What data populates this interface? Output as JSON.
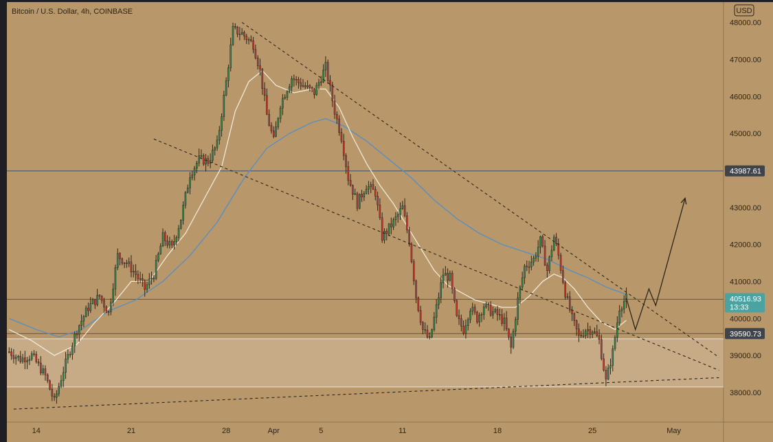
{
  "chart_data": {
    "type": "candlestick",
    "title": "Bitcoin / U.S. Dollar, 4h, COINBASE",
    "currency": "USD",
    "ylim": [
      37200,
      48550
    ],
    "y_ticks": [
      38000,
      39000,
      40000,
      41000,
      42000,
      43000,
      44000,
      45000,
      46000,
      47000,
      48000
    ],
    "y_tick_labels": [
      "38000.00",
      "39000.00",
      "40000.00",
      "41000.00",
      "42000.00",
      "43000.00",
      "44000.00",
      "45000.00",
      "46000.00",
      "47000.00",
      "48000.00"
    ],
    "x_ticks": [
      {
        "label": "14",
        "index": 12
      },
      {
        "label": "21",
        "index": 54
      },
      {
        "label": "28",
        "index": 96
      },
      {
        "label": "Apr",
        "index": 117
      },
      {
        "label": "5",
        "index": 138
      },
      {
        "label": "11",
        "index": 174
      },
      {
        "label": "18",
        "index": 216
      },
      {
        "label": "25",
        "index": 258
      },
      {
        "label": "May",
        "index": 294
      }
    ],
    "x_range": [
      -1,
      316
    ],
    "price_levels": [
      {
        "value": 43987.61,
        "label": "43987.61",
        "color": "#5d6470"
      },
      {
        "value": 40516.93,
        "label": "40516.93",
        "sublabel": "13:33",
        "color": "#4aa3a0",
        "current": true
      },
      {
        "value": 39590.73,
        "label": "39590.73",
        "color": "#5d6470"
      }
    ],
    "support_zone": [
      38150,
      39450
    ],
    "anchors": [
      {
        "i": 0,
        "p": 39100
      },
      {
        "i": 5,
        "p": 38900
      },
      {
        "i": 10,
        "p": 39000
      },
      {
        "i": 16,
        "p": 38450
      },
      {
        "i": 20,
        "p": 37750
      },
      {
        "i": 24,
        "p": 38600
      },
      {
        "i": 30,
        "p": 39700
      },
      {
        "i": 35,
        "p": 40300
      },
      {
        "i": 40,
        "p": 40600
      },
      {
        "i": 44,
        "p": 40150
      },
      {
        "i": 48,
        "p": 41700
      },
      {
        "i": 52,
        "p": 41500
      },
      {
        "i": 56,
        "p": 41200
      },
      {
        "i": 60,
        "p": 40800
      },
      {
        "i": 64,
        "p": 41200
      },
      {
        "i": 68,
        "p": 42200
      },
      {
        "i": 72,
        "p": 41900
      },
      {
        "i": 76,
        "p": 42700
      },
      {
        "i": 80,
        "p": 43900
      },
      {
        "i": 84,
        "p": 44300
      },
      {
        "i": 88,
        "p": 44250
      },
      {
        "i": 92,
        "p": 44700
      },
      {
        "i": 96,
        "p": 46400
      },
      {
        "i": 99,
        "p": 47800
      },
      {
        "i": 103,
        "p": 47700
      },
      {
        "i": 108,
        "p": 47400
      },
      {
        "i": 111,
        "p": 46700
      },
      {
        "i": 114,
        "p": 45500
      },
      {
        "i": 117,
        "p": 44800
      },
      {
        "i": 120,
        "p": 45800
      },
      {
        "i": 125,
        "p": 46500
      },
      {
        "i": 130,
        "p": 46300
      },
      {
        "i": 135,
        "p": 46100
      },
      {
        "i": 140,
        "p": 46800
      },
      {
        "i": 144,
        "p": 45600
      },
      {
        "i": 147,
        "p": 44900
      },
      {
        "i": 150,
        "p": 43800
      },
      {
        "i": 154,
        "p": 43100
      },
      {
        "i": 158,
        "p": 43600
      },
      {
        "i": 162,
        "p": 43400
      },
      {
        "i": 165,
        "p": 42200
      },
      {
        "i": 170,
        "p": 42600
      },
      {
        "i": 174,
        "p": 43000
      },
      {
        "i": 177,
        "p": 42100
      },
      {
        "i": 180,
        "p": 40600
      },
      {
        "i": 183,
        "p": 39700
      },
      {
        "i": 186,
        "p": 39400
      },
      {
        "i": 189,
        "p": 40300
      },
      {
        "i": 192,
        "p": 41200
      },
      {
        "i": 195,
        "p": 41100
      },
      {
        "i": 198,
        "p": 40000
      },
      {
        "i": 201,
        "p": 39700
      },
      {
        "i": 204,
        "p": 40300
      },
      {
        "i": 207,
        "p": 40000
      },
      {
        "i": 210,
        "p": 40350
      },
      {
        "i": 213,
        "p": 40200
      },
      {
        "i": 216,
        "p": 40100
      },
      {
        "i": 219,
        "p": 39900
      },
      {
        "i": 222,
        "p": 39200
      },
      {
        "i": 225,
        "p": 40500
      },
      {
        "i": 228,
        "p": 41400
      },
      {
        "i": 232,
        "p": 41600
      },
      {
        "i": 235,
        "p": 42100
      },
      {
        "i": 238,
        "p": 41300
      },
      {
        "i": 241,
        "p": 42200
      },
      {
        "i": 243,
        "p": 41700
      },
      {
        "i": 246,
        "p": 40700
      },
      {
        "i": 249,
        "p": 40000
      },
      {
        "i": 252,
        "p": 39500
      },
      {
        "i": 255,
        "p": 39700
      },
      {
        "i": 258,
        "p": 39700
      },
      {
        "i": 261,
        "p": 39400
      },
      {
        "i": 264,
        "p": 38300
      },
      {
        "i": 267,
        "p": 39100
      },
      {
        "i": 270,
        "p": 40300
      },
      {
        "i": 273,
        "p": 40550
      }
    ],
    "ema_fast": [
      {
        "i": 0,
        "p": 39700
      },
      {
        "i": 10,
        "p": 39400
      },
      {
        "i": 20,
        "p": 39000
      },
      {
        "i": 30,
        "p": 39300
      },
      {
        "i": 38,
        "p": 39900
      },
      {
        "i": 46,
        "p": 40400
      },
      {
        "i": 54,
        "p": 41000
      },
      {
        "i": 62,
        "p": 41000
      },
      {
        "i": 70,
        "p": 41700
      },
      {
        "i": 78,
        "p": 42300
      },
      {
        "i": 86,
        "p": 43200
      },
      {
        "i": 94,
        "p": 44100
      },
      {
        "i": 100,
        "p": 45600
      },
      {
        "i": 106,
        "p": 46400
      },
      {
        "i": 112,
        "p": 46700
      },
      {
        "i": 118,
        "p": 46300
      },
      {
        "i": 126,
        "p": 46100
      },
      {
        "i": 134,
        "p": 46200
      },
      {
        "i": 140,
        "p": 46200
      },
      {
        "i": 146,
        "p": 45700
      },
      {
        "i": 152,
        "p": 44900
      },
      {
        "i": 158,
        "p": 44200
      },
      {
        "i": 164,
        "p": 43600
      },
      {
        "i": 170,
        "p": 43100
      },
      {
        "i": 176,
        "p": 42500
      },
      {
        "i": 182,
        "p": 41900
      },
      {
        "i": 188,
        "p": 41300
      },
      {
        "i": 194,
        "p": 40900
      },
      {
        "i": 200,
        "p": 40700
      },
      {
        "i": 206,
        "p": 40500
      },
      {
        "i": 212,
        "p": 40400
      },
      {
        "i": 218,
        "p": 40300
      },
      {
        "i": 224,
        "p": 40300
      },
      {
        "i": 230,
        "p": 40600
      },
      {
        "i": 236,
        "p": 41000
      },
      {
        "i": 241,
        "p": 41200
      },
      {
        "i": 245,
        "p": 41100
      },
      {
        "i": 250,
        "p": 40800
      },
      {
        "i": 256,
        "p": 40300
      },
      {
        "i": 262,
        "p": 39900
      },
      {
        "i": 268,
        "p": 39700
      },
      {
        "i": 273,
        "p": 39950
      }
    ],
    "ema_slow": [
      {
        "i": 0,
        "p": 40000
      },
      {
        "i": 12,
        "p": 39700
      },
      {
        "i": 22,
        "p": 39500
      },
      {
        "i": 32,
        "p": 39700
      },
      {
        "i": 44,
        "p": 40200
      },
      {
        "i": 56,
        "p": 40500
      },
      {
        "i": 68,
        "p": 41000
      },
      {
        "i": 80,
        "p": 41700
      },
      {
        "i": 92,
        "p": 42600
      },
      {
        "i": 104,
        "p": 43800
      },
      {
        "i": 114,
        "p": 44600
      },
      {
        "i": 124,
        "p": 45000
      },
      {
        "i": 134,
        "p": 45300
      },
      {
        "i": 140,
        "p": 45400
      },
      {
        "i": 148,
        "p": 45200
      },
      {
        "i": 158,
        "p": 44800
      },
      {
        "i": 168,
        "p": 44300
      },
      {
        "i": 178,
        "p": 43800
      },
      {
        "i": 188,
        "p": 43200
      },
      {
        "i": 198,
        "p": 42700
      },
      {
        "i": 208,
        "p": 42300
      },
      {
        "i": 218,
        "p": 42000
      },
      {
        "i": 228,
        "p": 41800
      },
      {
        "i": 238,
        "p": 41600
      },
      {
        "i": 248,
        "p": 41300
      },
      {
        "i": 256,
        "p": 41100
      },
      {
        "i": 264,
        "p": 40850
      },
      {
        "i": 273,
        "p": 40650
      }
    ],
    "trendlines": [
      {
        "name": "descending-resistance",
        "from": {
          "i": 103,
          "p": 48000
        },
        "to": {
          "i": 314,
          "p": 38950
        }
      },
      {
        "name": "descending-support",
        "from": {
          "i": 64,
          "p": 44850
        },
        "to": {
          "i": 314,
          "p": 38600
        }
      },
      {
        "name": "ascending-support",
        "from": {
          "i": 2,
          "p": 37550
        },
        "to": {
          "i": 314,
          "p": 38400
        }
      }
    ],
    "projection": [
      {
        "i": 273,
        "p": 40550
      },
      {
        "i": 277,
        "p": 39700
      },
      {
        "i": 283,
        "p": 40800
      },
      {
        "i": 286,
        "p": 40350
      },
      {
        "i": 299,
        "p": 43250
      }
    ]
  }
}
